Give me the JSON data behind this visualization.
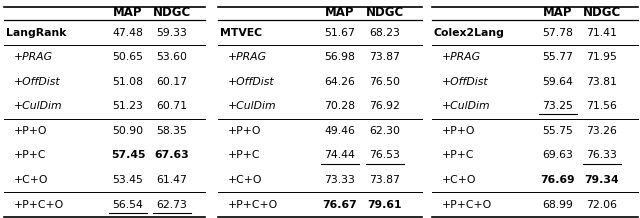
{
  "tables": [
    {
      "name": "LangRank",
      "rows": [
        {
          "label": "LangRank",
          "map": "47.48",
          "ndgc": "59.33",
          "label_bold": true,
          "label_italic": false,
          "map_bold": false,
          "map_underline": false,
          "ndgc_bold": false,
          "ndgc_underline": false
        },
        {
          "label": "+PRAG",
          "map": "50.65",
          "ndgc": "53.60",
          "label_bold": false,
          "label_italic": true,
          "map_bold": false,
          "map_underline": false,
          "ndgc_bold": false,
          "ndgc_underline": false
        },
        {
          "label": "+OffDist",
          "map": "51.08",
          "ndgc": "60.17",
          "label_bold": false,
          "label_italic": true,
          "map_bold": false,
          "map_underline": false,
          "ndgc_bold": false,
          "ndgc_underline": false
        },
        {
          "label": "+CulDim",
          "map": "51.23",
          "ndgc": "60.71",
          "label_bold": false,
          "label_italic": true,
          "map_bold": false,
          "map_underline": false,
          "ndgc_bold": false,
          "ndgc_underline": false
        },
        {
          "label": "+P+O",
          "map": "50.90",
          "ndgc": "58.35",
          "label_bold": false,
          "label_italic": false,
          "map_bold": false,
          "map_underline": false,
          "ndgc_bold": false,
          "ndgc_underline": false
        },
        {
          "label": "+P+C",
          "map": "57.45",
          "ndgc": "67.63",
          "label_bold": false,
          "label_italic": false,
          "map_bold": true,
          "map_underline": false,
          "ndgc_bold": true,
          "ndgc_underline": false
        },
        {
          "label": "+C+O",
          "map": "53.45",
          "ndgc": "61.47",
          "label_bold": false,
          "label_italic": false,
          "map_bold": false,
          "map_underline": false,
          "ndgc_bold": false,
          "ndgc_underline": false
        },
        {
          "label": "+P+C+O",
          "map": "56.54",
          "ndgc": "62.73",
          "label_bold": false,
          "label_italic": false,
          "map_bold": false,
          "map_underline": true,
          "ndgc_bold": false,
          "ndgc_underline": true
        }
      ],
      "group_separators": [
        1,
        4,
        7
      ]
    },
    {
      "name": "MTVEC",
      "rows": [
        {
          "label": "MTVEC",
          "map": "51.67",
          "ndgc": "68.23",
          "label_bold": true,
          "label_italic": false,
          "map_bold": false,
          "map_underline": false,
          "ndgc_bold": false,
          "ndgc_underline": false
        },
        {
          "label": "+PRAG",
          "map": "56.98",
          "ndgc": "73.87",
          "label_bold": false,
          "label_italic": true,
          "map_bold": false,
          "map_underline": false,
          "ndgc_bold": false,
          "ndgc_underline": false
        },
        {
          "label": "+OffDist",
          "map": "64.26",
          "ndgc": "76.50",
          "label_bold": false,
          "label_italic": true,
          "map_bold": false,
          "map_underline": false,
          "ndgc_bold": false,
          "ndgc_underline": false
        },
        {
          "label": "+CulDim",
          "map": "70.28",
          "ndgc": "76.92",
          "label_bold": false,
          "label_italic": true,
          "map_bold": false,
          "map_underline": false,
          "ndgc_bold": false,
          "ndgc_underline": false
        },
        {
          "label": "+P+O",
          "map": "49.46",
          "ndgc": "62.30",
          "label_bold": false,
          "label_italic": false,
          "map_bold": false,
          "map_underline": false,
          "ndgc_bold": false,
          "ndgc_underline": false
        },
        {
          "label": "+P+C",
          "map": "74.44",
          "ndgc": "76.53",
          "label_bold": false,
          "label_italic": false,
          "map_bold": false,
          "map_underline": true,
          "ndgc_bold": false,
          "ndgc_underline": true
        },
        {
          "label": "+C+O",
          "map": "73.33",
          "ndgc": "73.87",
          "label_bold": false,
          "label_italic": false,
          "map_bold": false,
          "map_underline": false,
          "ndgc_bold": false,
          "ndgc_underline": false
        },
        {
          "label": "+P+C+O",
          "map": "76.67",
          "ndgc": "79.61",
          "label_bold": false,
          "label_italic": false,
          "map_bold": true,
          "map_underline": false,
          "ndgc_bold": true,
          "ndgc_underline": false
        }
      ],
      "group_separators": [
        1,
        4,
        7
      ]
    },
    {
      "name": "Colex2Lang",
      "rows": [
        {
          "label": "Colex2Lang",
          "map": "57.78",
          "ndgc": "71.41",
          "label_bold": true,
          "label_italic": false,
          "map_bold": false,
          "map_underline": false,
          "ndgc_bold": false,
          "ndgc_underline": false
        },
        {
          "label": "+PRAG",
          "map": "55.77",
          "ndgc": "71.95",
          "label_bold": false,
          "label_italic": true,
          "map_bold": false,
          "map_underline": false,
          "ndgc_bold": false,
          "ndgc_underline": false
        },
        {
          "label": "+OffDist",
          "map": "59.64",
          "ndgc": "73.81",
          "label_bold": false,
          "label_italic": true,
          "map_bold": false,
          "map_underline": false,
          "ndgc_bold": false,
          "ndgc_underline": false
        },
        {
          "label": "+CulDim",
          "map": "73.25",
          "ndgc": "71.56",
          "label_bold": false,
          "label_italic": true,
          "map_bold": false,
          "map_underline": true,
          "ndgc_bold": false,
          "ndgc_underline": false
        },
        {
          "label": "+P+O",
          "map": "55.75",
          "ndgc": "73.26",
          "label_bold": false,
          "label_italic": false,
          "map_bold": false,
          "map_underline": false,
          "ndgc_bold": false,
          "ndgc_underline": false
        },
        {
          "label": "+P+C",
          "map": "69.63",
          "ndgc": "76.33",
          "label_bold": false,
          "label_italic": false,
          "map_bold": false,
          "map_underline": false,
          "ndgc_bold": false,
          "ndgc_underline": true
        },
        {
          "label": "+C+O",
          "map": "76.69",
          "ndgc": "79.34",
          "label_bold": false,
          "label_italic": false,
          "map_bold": true,
          "map_underline": false,
          "ndgc_bold": true,
          "ndgc_underline": false
        },
        {
          "label": "+P+C+O",
          "map": "68.99",
          "ndgc": "72.06",
          "label_bold": false,
          "label_italic": false,
          "map_bold": false,
          "map_underline": false,
          "ndgc_bold": false,
          "ndgc_underline": false
        }
      ],
      "group_separators": [
        1,
        4,
        7
      ]
    }
  ],
  "font_size": 7.8,
  "header_font_size": 8.5,
  "background_color": "#ffffff"
}
